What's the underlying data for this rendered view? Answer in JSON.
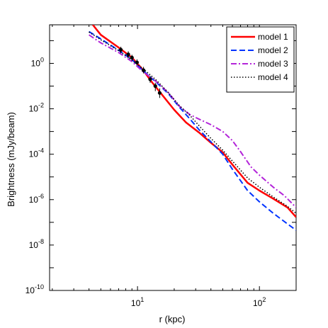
{
  "chart_data": {
    "type": "line",
    "xlabel": "r (kpc)",
    "ylabel": "Brightness (mJy/beam)",
    "x_scale": "log",
    "y_scale": "log",
    "xlim": [
      1.9,
      200
    ],
    "ylim": [
      1e-10,
      50
    ],
    "x_ticks": [
      {
        "value": 10,
        "base": "10",
        "exp": "1"
      },
      {
        "value": 100,
        "base": "10",
        "exp": "2"
      }
    ],
    "y_ticks": [
      {
        "value": 1,
        "base": "10",
        "exp": "0"
      },
      {
        "value": 0.01,
        "base": "10",
        "exp": "-2"
      },
      {
        "value": 0.0001,
        "base": "10",
        "exp": "-4"
      },
      {
        "value": 1e-06,
        "base": "10",
        "exp": "-6"
      },
      {
        "value": 1e-08,
        "base": "10",
        "exp": "-8"
      },
      {
        "value": 1e-10,
        "base": "10",
        "exp": "-10"
      }
    ],
    "grid": false,
    "legend_position": "top-right",
    "series": [
      {
        "name": "model 1",
        "color": "#ff0000",
        "style": "solid",
        "points": [
          [
            4.3,
            50
          ],
          [
            5,
            18
          ],
          [
            7,
            5
          ],
          [
            9,
            1.8
          ],
          [
            11,
            0.55
          ],
          [
            13,
            0.16
          ],
          [
            16,
            0.04
          ],
          [
            20,
            0.009
          ],
          [
            25,
            0.0025
          ],
          [
            32,
            0.0009
          ],
          [
            40,
            0.00032
          ],
          [
            50,
            0.00012
          ],
          [
            60,
            3.5e-05
          ],
          [
            80,
            5.5e-06
          ],
          [
            100,
            2.5e-06
          ],
          [
            130,
            1.1e-06
          ],
          [
            170,
            4.5e-07
          ],
          [
            200,
            1.7e-07
          ]
        ]
      },
      {
        "name": "model 2",
        "color": "#0033ff",
        "style": "dashed",
        "points": [
          [
            4,
            25
          ],
          [
            5,
            12
          ],
          [
            7,
            3.8
          ],
          [
            9,
            1.5
          ],
          [
            11,
            0.5
          ],
          [
            14,
            0.16
          ],
          [
            18,
            0.045
          ],
          [
            22,
            0.012
          ],
          [
            27,
            0.0035
          ],
          [
            32,
            0.0012
          ],
          [
            40,
            0.00035
          ],
          [
            50,
            0.0001
          ],
          [
            60,
            2.2e-05
          ],
          [
            80,
            2.5e-06
          ],
          [
            100,
            8e-07
          ],
          [
            130,
            2.5e-07
          ],
          [
            170,
            8.5e-08
          ],
          [
            200,
            4.5e-08
          ]
        ]
      },
      {
        "name": "model 3",
        "color": "#b325d9",
        "style": "dashdot",
        "points": [
          [
            4,
            18
          ],
          [
            5,
            8
          ],
          [
            7,
            3
          ],
          [
            9,
            1.2
          ],
          [
            11,
            0.45
          ],
          [
            14,
            0.17
          ],
          [
            18,
            0.05
          ],
          [
            22,
            0.013
          ],
          [
            27,
            0.0055
          ],
          [
            32,
            0.0035
          ],
          [
            40,
            0.002
          ],
          [
            50,
            0.001
          ],
          [
            60,
            0.0004
          ],
          [
            70,
            0.00013
          ],
          [
            85,
            2.8e-05
          ],
          [
            100,
            1.2e-05
          ],
          [
            130,
            3.5e-06
          ],
          [
            160,
            1.5e-06
          ],
          [
            200,
            4.5e-07
          ]
        ]
      },
      {
        "name": "model 4",
        "color": "#000000",
        "style": "dotted",
        "points": [
          [
            4,
            24
          ],
          [
            5,
            11
          ],
          [
            7,
            3.6
          ],
          [
            9,
            1.4
          ],
          [
            11,
            0.6
          ],
          [
            14,
            0.2
          ],
          [
            18,
            0.05
          ],
          [
            22,
            0.014
          ],
          [
            27,
            0.005
          ],
          [
            33,
            0.0015
          ],
          [
            40,
            0.0005
          ],
          [
            50,
            0.00015
          ],
          [
            60,
            5e-05
          ],
          [
            80,
            9e-06
          ],
          [
            100,
            3.5e-06
          ],
          [
            130,
            1.3e-06
          ],
          [
            170,
            5e-07
          ],
          [
            200,
            2.5e-07
          ]
        ]
      }
    ],
    "observed": {
      "color": "#000000",
      "points": [
        {
          "x": 7.3,
          "y": 4.0,
          "lo": 2.8,
          "hi": 5.4
        },
        {
          "x": 8.4,
          "y": 2.5,
          "lo": 1.8,
          "hi": 3.4
        },
        {
          "x": 9.0,
          "y": 1.8,
          "lo": 1.3,
          "hi": 2.4
        },
        {
          "x": 9.9,
          "y": 1.1,
          "lo": 0.8,
          "hi": 1.5
        },
        {
          "x": 11.2,
          "y": 0.5,
          "lo": 0.36,
          "hi": 0.7
        },
        {
          "x": 12.7,
          "y": 0.2,
          "lo": 0.14,
          "hi": 0.28
        },
        {
          "x": 14.0,
          "y": 0.1,
          "lo": 0.06,
          "hi": 0.14
        },
        {
          "x": 15.2,
          "y": 0.05,
          "lo": 0.03,
          "hi": 0.08
        }
      ]
    }
  }
}
